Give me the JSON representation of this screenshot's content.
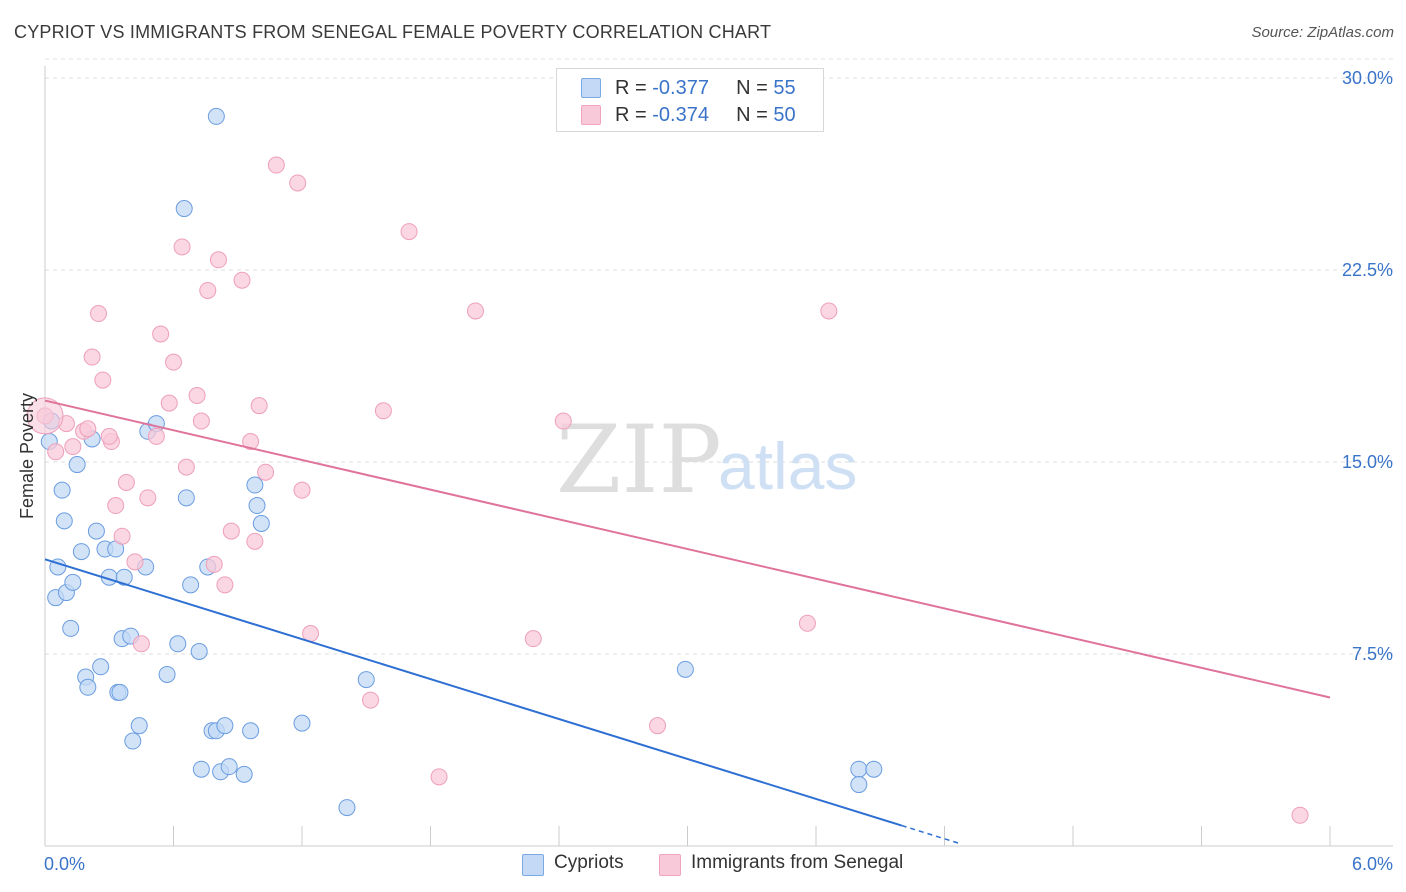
{
  "title": "CYPRIOT VS IMMIGRANTS FROM SENEGAL FEMALE POVERTY CORRELATION CHART",
  "source": "Source: ZipAtlas.com",
  "watermark": {
    "zip": "ZIP",
    "atlas": "atlas"
  },
  "legend_top": [
    {
      "r_label": "R = ",
      "r_value": "-0.377",
      "n_label": "N = ",
      "n_value": "55"
    },
    {
      "r_label": "R = ",
      "r_value": "-0.374",
      "n_label": "N = ",
      "n_value": "50"
    }
  ],
  "chart_data": {
    "type": "scatter",
    "title": "CYPRIOT VS IMMIGRANTS FROM SENEGAL FEMALE POVERTY CORRELATION CHART",
    "xlabel": "",
    "ylabel": "Female Poverty",
    "xlim": [
      0,
      6.0
    ],
    "ylim": [
      0,
      30.0
    ],
    "x_tick_labels": [
      "0.0%",
      "6.0%"
    ],
    "y_tick_values": [
      7.5,
      15.0,
      22.5,
      30.0
    ],
    "y_tick_labels": [
      "7.5%",
      "15.0%",
      "22.5%",
      "30.0%"
    ],
    "grid": true,
    "legend_position": "top-center",
    "series": [
      {
        "name": "Cypriots",
        "color": "#7aaae6",
        "fill": "#c3d9f5",
        "stroke": "#6b9de0",
        "line_color": "#2e6fd3",
        "trend": {
          "x0": 0.0,
          "y0": 11.2,
          "x1": 4.0,
          "y1": 0.8,
          "dash_to_x": 4.27,
          "dash_to_y": 0.1
        },
        "points": [
          [
            0.02,
            15.8
          ],
          [
            0.03,
            16.6
          ],
          [
            0.05,
            9.7
          ],
          [
            0.06,
            10.9
          ],
          [
            0.08,
            13.9
          ],
          [
            0.09,
            12.7
          ],
          [
            0.1,
            9.9
          ],
          [
            0.12,
            8.5
          ],
          [
            0.13,
            10.3
          ],
          [
            0.15,
            14.9
          ],
          [
            0.17,
            11.5
          ],
          [
            0.19,
            6.6
          ],
          [
            0.2,
            6.2
          ],
          [
            0.22,
            15.9
          ],
          [
            0.24,
            12.3
          ],
          [
            0.26,
            7.0
          ],
          [
            0.28,
            11.6
          ],
          [
            0.3,
            10.5
          ],
          [
            0.33,
            11.6
          ],
          [
            0.34,
            6.0
          ],
          [
            0.36,
            8.1
          ],
          [
            0.37,
            10.5
          ],
          [
            0.4,
            8.2
          ],
          [
            0.41,
            4.1
          ],
          [
            0.44,
            4.7
          ],
          [
            0.47,
            10.9
          ],
          [
            0.48,
            16.2
          ],
          [
            0.52,
            16.5
          ],
          [
            0.57,
            6.7
          ],
          [
            0.62,
            7.9
          ],
          [
            0.65,
            24.9
          ],
          [
            0.66,
            13.6
          ],
          [
            0.68,
            10.2
          ],
          [
            0.72,
            7.6
          ],
          [
            0.73,
            3.0
          ],
          [
            0.76,
            10.9
          ],
          [
            0.78,
            4.5
          ],
          [
            0.8,
            4.5
          ],
          [
            0.8,
            28.5
          ],
          [
            0.82,
            2.9
          ],
          [
            0.84,
            4.7
          ],
          [
            0.86,
            3.1
          ],
          [
            0.93,
            2.8
          ],
          [
            0.96,
            4.5
          ],
          [
            0.98,
            14.1
          ],
          [
            0.99,
            13.3
          ],
          [
            1.01,
            12.6
          ],
          [
            1.2,
            4.8
          ],
          [
            1.41,
            1.5
          ],
          [
            1.5,
            6.5
          ],
          [
            2.99,
            6.9
          ],
          [
            3.8,
            3.0
          ],
          [
            3.8,
            2.4
          ],
          [
            3.87,
            3.0
          ],
          [
            0.35,
            6.0
          ]
        ]
      },
      {
        "name": "Immigrants from Senegal",
        "color": "#f2a3bd",
        "fill": "#f8c9d8",
        "stroke": "#ee9fb9",
        "line_color": "#e0739b",
        "trend": {
          "x0": 0.0,
          "y0": 17.4,
          "x1": 6.0,
          "y1": 5.8
        },
        "points": [
          [
            0.0,
            16.8
          ],
          [
            0.05,
            15.4
          ],
          [
            0.1,
            16.5
          ],
          [
            0.13,
            15.6
          ],
          [
            0.18,
            16.2
          ],
          [
            0.2,
            16.3
          ],
          [
            0.22,
            19.1
          ],
          [
            0.25,
            20.8
          ],
          [
            0.27,
            18.2
          ],
          [
            0.31,
            15.8
          ],
          [
            0.33,
            13.3
          ],
          [
            0.36,
            12.1
          ],
          [
            0.38,
            14.2
          ],
          [
            0.42,
            11.1
          ],
          [
            0.45,
            7.9
          ],
          [
            0.48,
            13.6
          ],
          [
            0.52,
            16.0
          ],
          [
            0.54,
            20.0
          ],
          [
            0.58,
            17.3
          ],
          [
            0.6,
            18.9
          ],
          [
            0.64,
            23.4
          ],
          [
            0.66,
            14.8
          ],
          [
            0.71,
            17.6
          ],
          [
            0.73,
            16.6
          ],
          [
            0.76,
            21.7
          ],
          [
            0.79,
            11.0
          ],
          [
            0.81,
            22.9
          ],
          [
            0.84,
            10.2
          ],
          [
            0.87,
            12.3
          ],
          [
            0.92,
            22.1
          ],
          [
            0.96,
            15.8
          ],
          [
            0.98,
            11.9
          ],
          [
            1.0,
            17.2
          ],
          [
            1.03,
            14.6
          ],
          [
            1.08,
            26.6
          ],
          [
            1.18,
            25.9
          ],
          [
            1.2,
            13.9
          ],
          [
            1.24,
            8.3
          ],
          [
            1.52,
            5.7
          ],
          [
            1.58,
            17.0
          ],
          [
            1.7,
            24.0
          ],
          [
            1.84,
            2.7
          ],
          [
            2.01,
            20.9
          ],
          [
            2.28,
            8.1
          ],
          [
            2.42,
            16.6
          ],
          [
            2.86,
            4.7
          ],
          [
            3.56,
            8.7
          ],
          [
            3.66,
            20.9
          ],
          [
            5.86,
            1.2
          ],
          [
            0.3,
            16.0
          ]
        ]
      }
    ]
  }
}
